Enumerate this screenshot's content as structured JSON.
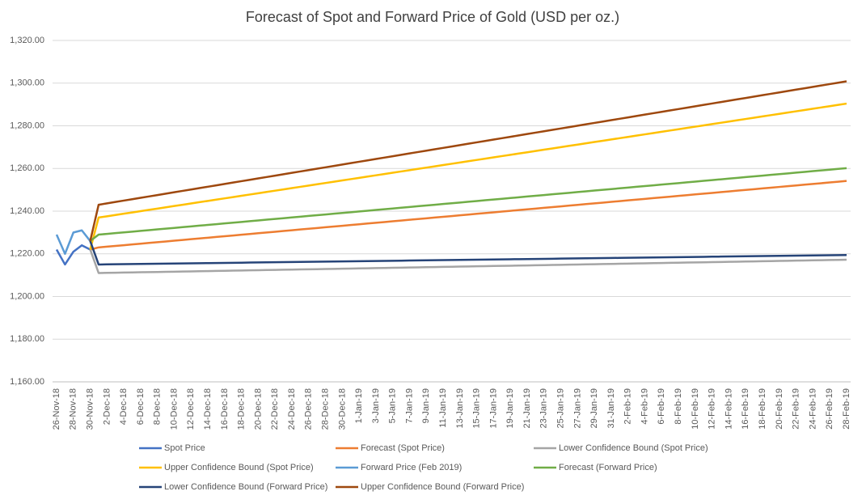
{
  "chart_data": {
    "type": "line",
    "title": "Forecast of Spot and Forward Price of Gold (USD per oz.)",
    "categories": [
      "26-Nov-18",
      null,
      "28-Nov-18",
      null,
      "30-Nov-18",
      null,
      "2-Dec-18",
      null,
      "4-Dec-18",
      null,
      "6-Dec-18",
      null,
      "8-Dec-18",
      null,
      "10-Dec-18",
      null,
      "12-Dec-18",
      null,
      "14-Dec-18",
      null,
      "16-Dec-18",
      null,
      "18-Dec-18",
      null,
      "20-Dec-18",
      null,
      "22-Dec-18",
      null,
      "24-Dec-18",
      null,
      "26-Dec-18",
      null,
      "28-Dec-18",
      null,
      "30-Dec-18",
      null,
      "1-Jan-19",
      null,
      "3-Jan-19",
      null,
      "5-Jan-19",
      null,
      "7-Jan-19",
      null,
      "9-Jan-19",
      null,
      "11-Jan-19",
      null,
      "13-Jan-19",
      null,
      "15-Jan-19",
      null,
      "17-Jan-19",
      null,
      "19-Jan-19",
      null,
      "21-Jan-19",
      null,
      "23-Jan-19",
      null,
      "25-Jan-19",
      null,
      "27-Jan-19",
      null,
      "29-Jan-19",
      null,
      "31-Jan-19",
      null,
      "2-Feb-19",
      null,
      "4-Feb-19",
      null,
      "6-Feb-19",
      null,
      "8-Feb-19",
      null,
      "10-Feb-19",
      null,
      "12-Feb-19",
      null,
      "14-Feb-19",
      null,
      "16-Feb-19",
      null,
      "18-Feb-19",
      null,
      "20-Feb-19",
      null,
      "22-Feb-19",
      null,
      "24-Feb-19",
      null,
      "26-Feb-19",
      null,
      "28-Feb-19"
    ],
    "ylim": [
      1160,
      1320
    ],
    "yticks": [
      {
        "value": 1160,
        "label": "1,160.00"
      },
      {
        "value": 1180,
        "label": "1,180.00"
      },
      {
        "value": 1200,
        "label": "1,200.00"
      },
      {
        "value": 1220,
        "label": "1,220.00"
      },
      {
        "value": 1240,
        "label": "1,240.00"
      },
      {
        "value": 1260,
        "label": "1,260.00"
      },
      {
        "value": 1280,
        "label": "1,280.00"
      },
      {
        "value": 1300,
        "label": "1,300.00"
      },
      {
        "value": 1320,
        "label": "1,320.00"
      }
    ],
    "grid": true,
    "series": [
      {
        "name": "Spot Price",
        "color": "#4472c4",
        "values": [
          1222,
          1215,
          1221,
          1224,
          1222,
          null,
          null,
          null,
          null,
          null,
          null,
          null,
          null,
          null,
          null,
          null,
          null,
          null,
          null,
          null,
          null,
          null,
          null,
          null,
          null,
          null,
          null,
          null,
          null,
          null,
          null,
          null,
          null,
          null,
          null,
          null,
          null,
          null,
          null,
          null,
          null,
          null,
          null,
          null,
          null,
          null,
          null,
          null,
          null,
          null,
          null,
          null,
          null,
          null,
          null,
          null,
          null,
          null,
          null,
          null,
          null,
          null,
          null,
          null,
          null,
          null,
          null,
          null,
          null,
          null,
          null,
          null,
          null,
          null,
          null,
          null,
          null,
          null,
          null,
          null,
          null,
          null,
          null,
          null,
          null,
          null,
          null,
          null,
          null,
          null,
          null,
          null,
          null,
          null,
          null
        ]
      },
      {
        "name": "Forecast (Spot Price)",
        "color": "#ed7d31",
        "values": [
          null,
          null,
          null,
          null,
          1222,
          1223,
          1223.35,
          1223.7,
          1224.05,
          1224.4,
          1224.75,
          1225.1,
          1225.45,
          1225.8,
          1226.15,
          1226.5,
          1226.85,
          1227.2,
          1227.55,
          1227.9,
          1228.25,
          1228.6,
          1228.95,
          1229.3,
          1229.65,
          1230,
          1230.35,
          1230.7,
          1231.05,
          1231.4,
          1231.75,
          1232.1,
          1232.45,
          1232.8,
          1233.15,
          1233.5,
          1233.85,
          1234.2,
          1234.55,
          1234.9,
          1235.25,
          1235.6,
          1235.95,
          1236.3,
          1236.65,
          1237,
          1237.35,
          1237.7,
          1238.05,
          1238.4,
          1238.75,
          1239.1,
          1239.45,
          1239.8,
          1240.15,
          1240.5,
          1240.85,
          1241.2,
          1241.55,
          1241.9,
          1242.25,
          1242.6,
          1242.95,
          1243.3,
          1243.65,
          1244,
          1244.35,
          1244.7,
          1245.05,
          1245.4,
          1245.75,
          1246.1,
          1246.45,
          1246.8,
          1247.15,
          1247.5,
          1247.85,
          1248.2,
          1248.55,
          1248.9,
          1249.25,
          1249.6,
          1249.95,
          1250.3,
          1250.65,
          1251,
          1251.35,
          1251.7,
          1252.05,
          1252.4,
          1252.75,
          1253.1,
          1253.45,
          1253.8,
          1254.15
        ]
      },
      {
        "name": "Lower Confidence Bound (Spot Price)",
        "color": "#a5a5a5",
        "values": [
          null,
          null,
          null,
          null,
          1222,
          1211,
          1211.07,
          1211.14,
          1211.21,
          1211.28,
          1211.35,
          1211.42,
          1211.49,
          1211.56,
          1211.63,
          1211.7,
          1211.77,
          1211.84,
          1211.91,
          1211.98,
          1212.05,
          1212.12,
          1212.19,
          1212.26,
          1212.33,
          1212.4,
          1212.47,
          1212.54,
          1212.61,
          1212.68,
          1212.75,
          1212.82,
          1212.89,
          1212.96,
          1213.03,
          1213.1,
          1213.17,
          1213.24,
          1213.31,
          1213.38,
          1213.45,
          1213.52,
          1213.59,
          1213.66,
          1213.73,
          1213.8,
          1213.87,
          1213.94,
          1214.01,
          1214.08,
          1214.15,
          1214.22,
          1214.29,
          1214.36,
          1214.43,
          1214.5,
          1214.57,
          1214.64,
          1214.71,
          1214.78,
          1214.85,
          1214.92,
          1214.99,
          1215.06,
          1215.13,
          1215.2,
          1215.27,
          1215.34,
          1215.41,
          1215.48,
          1215.55,
          1215.62,
          1215.69,
          1215.76,
          1215.83,
          1215.9,
          1215.97,
          1216.04,
          1216.11,
          1216.18,
          1216.25,
          1216.32,
          1216.39,
          1216.46,
          1216.53,
          1216.6,
          1216.67,
          1216.74,
          1216.81,
          1216.88,
          1216.95,
          1217.02,
          1217.09,
          1217.16,
          1217.23
        ]
      },
      {
        "name": "Upper Confidence Bound (Spot Price)",
        "color": "#ffc000",
        "values": [
          null,
          null,
          null,
          null,
          1222,
          1237,
          1237.6,
          1238.2,
          1238.8,
          1239.4,
          1240,
          1240.6,
          1241.2,
          1241.8,
          1242.4,
          1243,
          1243.6,
          1244.2,
          1244.8,
          1245.4,
          1246,
          1246.6,
          1247.2,
          1247.8,
          1248.4,
          1249,
          1249.6,
          1250.2,
          1250.8,
          1251.4,
          1252,
          1252.6,
          1253.2,
          1253.8,
          1254.4,
          1255,
          1255.6,
          1256.2,
          1256.8,
          1257.4,
          1258,
          1258.6,
          1259.2,
          1259.8,
          1260.4,
          1261,
          1261.6,
          1262.2,
          1262.8,
          1263.4,
          1264,
          1264.6,
          1265.2,
          1265.8,
          1266.4,
          1267,
          1267.6,
          1268.2,
          1268.8,
          1269.4,
          1270,
          1270.6,
          1271.2,
          1271.8,
          1272.4,
          1273,
          1273.6,
          1274.2,
          1274.8,
          1275.4,
          1276,
          1276.6,
          1277.2,
          1277.8,
          1278.4,
          1279,
          1279.6,
          1280.2,
          1280.8,
          1281.4,
          1282,
          1282.6,
          1283.2,
          1283.8,
          1284.4,
          1285,
          1285.6,
          1286.2,
          1286.8,
          1287.4,
          1288,
          1288.6,
          1289.2,
          1289.8,
          1290.4
        ]
      },
      {
        "name": "Forward Price (Feb 2019)",
        "color": "#5b9bd5",
        "values": [
          1229,
          1220,
          1230,
          1231,
          1226,
          null,
          null,
          null,
          null,
          null,
          null,
          null,
          null,
          null,
          null,
          null,
          null,
          null,
          null,
          null,
          null,
          null,
          null,
          null,
          null,
          null,
          null,
          null,
          null,
          null,
          null,
          null,
          null,
          null,
          null,
          null,
          null,
          null,
          null,
          null,
          null,
          null,
          null,
          null,
          null,
          null,
          null,
          null,
          null,
          null,
          null,
          null,
          null,
          null,
          null,
          null,
          null,
          null,
          null,
          null,
          null,
          null,
          null,
          null,
          null,
          null,
          null,
          null,
          null,
          null,
          null,
          null,
          null,
          null,
          null,
          null,
          null,
          null,
          null,
          null,
          null,
          null,
          null,
          null,
          null,
          null,
          null,
          null,
          null,
          null,
          null,
          null,
          null,
          null,
          null
        ]
      },
      {
        "name": "Forecast (Forward Price)",
        "color": "#70ad47",
        "values": [
          null,
          null,
          null,
          null,
          1226,
          1229,
          1229.35,
          1229.7,
          1230.05,
          1230.4,
          1230.75,
          1231.1,
          1231.45,
          1231.8,
          1232.15,
          1232.5,
          1232.85,
          1233.2,
          1233.55,
          1233.9,
          1234.25,
          1234.6,
          1234.95,
          1235.3,
          1235.65,
          1236,
          1236.35,
          1236.7,
          1237.05,
          1237.4,
          1237.75,
          1238.1,
          1238.45,
          1238.8,
          1239.15,
          1239.5,
          1239.85,
          1240.2,
          1240.55,
          1240.9,
          1241.25,
          1241.6,
          1241.95,
          1242.3,
          1242.65,
          1243,
          1243.35,
          1243.7,
          1244.05,
          1244.4,
          1244.75,
          1245.1,
          1245.45,
          1245.8,
          1246.15,
          1246.5,
          1246.85,
          1247.2,
          1247.55,
          1247.9,
          1248.25,
          1248.6,
          1248.95,
          1249.3,
          1249.65,
          1250,
          1250.35,
          1250.7,
          1251.05,
          1251.4,
          1251.75,
          1252.1,
          1252.45,
          1252.8,
          1253.15,
          1253.5,
          1253.85,
          1254.2,
          1254.55,
          1254.9,
          1255.25,
          1255.6,
          1255.95,
          1256.3,
          1256.65,
          1257,
          1257.35,
          1257.7,
          1258.05,
          1258.4,
          1258.75,
          1259.1,
          1259.45,
          1259.8,
          1260.15
        ]
      },
      {
        "name": "Lower Confidence Bound (Forward Price)",
        "color": "#264478",
        "values": [
          null,
          null,
          null,
          null,
          1226,
          1215,
          1215.05,
          1215.1,
          1215.15,
          1215.2,
          1215.25,
          1215.3,
          1215.35,
          1215.4,
          1215.45,
          1215.5,
          1215.55,
          1215.6,
          1215.65,
          1215.7,
          1215.75,
          1215.8,
          1215.85,
          1215.9,
          1215.95,
          1216,
          1216.05,
          1216.1,
          1216.15,
          1216.2,
          1216.25,
          1216.3,
          1216.35,
          1216.4,
          1216.45,
          1216.5,
          1216.55,
          1216.6,
          1216.65,
          1216.7,
          1216.75,
          1216.8,
          1216.85,
          1216.9,
          1216.95,
          1217,
          1217.05,
          1217.1,
          1217.15,
          1217.2,
          1217.25,
          1217.3,
          1217.35,
          1217.4,
          1217.45,
          1217.5,
          1217.55,
          1217.6,
          1217.65,
          1217.7,
          1217.75,
          1217.8,
          1217.85,
          1217.9,
          1217.95,
          1218,
          1218.05,
          1218.1,
          1218.15,
          1218.2,
          1218.25,
          1218.3,
          1218.35,
          1218.4,
          1218.45,
          1218.5,
          1218.55,
          1218.6,
          1218.65,
          1218.7,
          1218.75,
          1218.8,
          1218.85,
          1218.9,
          1218.95,
          1219,
          1219.05,
          1219.1,
          1219.15,
          1219.2,
          1219.25,
          1219.3,
          1219.35,
          1219.4,
          1219.45
        ]
      },
      {
        "name": "Upper Confidence Bound (Forward Price)",
        "color": "#9e480e",
        "values": [
          null,
          null,
          null,
          null,
          1226,
          1243,
          1243.65,
          1244.3,
          1244.95,
          1245.6,
          1246.25,
          1246.9,
          1247.55,
          1248.2,
          1248.85,
          1249.5,
          1250.15,
          1250.8,
          1251.45,
          1252.1,
          1252.75,
          1253.4,
          1254.05,
          1254.7,
          1255.35,
          1256,
          1256.65,
          1257.3,
          1257.95,
          1258.6,
          1259.25,
          1259.9,
          1260.55,
          1261.2,
          1261.85,
          1262.5,
          1263.15,
          1263.8,
          1264.45,
          1265.1,
          1265.75,
          1266.4,
          1267.05,
          1267.7,
          1268.35,
          1269,
          1269.65,
          1270.3,
          1270.95,
          1271.6,
          1272.25,
          1272.9,
          1273.55,
          1274.2,
          1274.85,
          1275.5,
          1276.15,
          1276.8,
          1277.45,
          1278.1,
          1278.75,
          1279.4,
          1280.05,
          1280.7,
          1281.35,
          1282,
          1282.65,
          1283.3,
          1283.95,
          1284.6,
          1285.25,
          1285.9,
          1286.55,
          1287.2,
          1287.85,
          1288.5,
          1289.15,
          1289.8,
          1290.45,
          1291.1,
          1291.75,
          1292.4,
          1293.05,
          1293.7,
          1294.35,
          1295,
          1295.65,
          1296.3,
          1296.95,
          1297.6,
          1298.25,
          1298.9,
          1299.55,
          1300.2,
          1300.85
        ]
      }
    ]
  }
}
